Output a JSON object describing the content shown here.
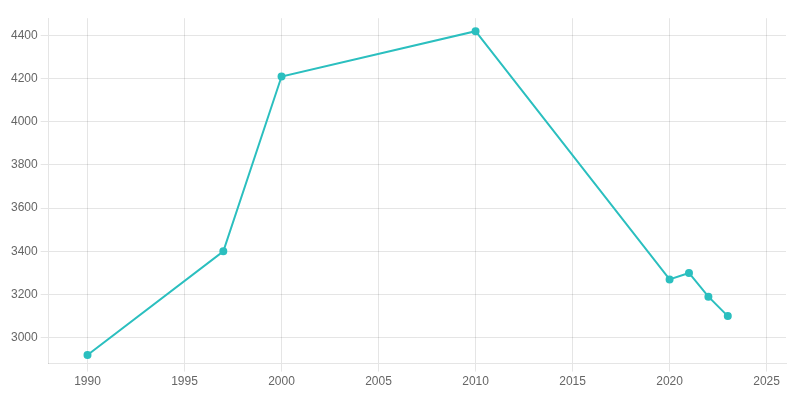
{
  "chart_data": {
    "type": "line",
    "x": [
      1990,
      1997,
      2000,
      2010,
      2020,
      2021,
      2022,
      2023
    ],
    "values": [
      2920,
      3400,
      4210,
      4420,
      3270,
      3300,
      3190,
      3100
    ],
    "color": "#2bbfbf",
    "marker": "circle",
    "xlim": [
      1988,
      2026
    ],
    "xticks": [
      1990,
      1995,
      2000,
      2005,
      2010,
      2015,
      2020,
      2025
    ],
    "ylim": [
      2880,
      4480
    ],
    "yticks": [
      3000,
      3200,
      3400,
      3600,
      3800,
      4000,
      4200,
      4400
    ],
    "grid": true
  }
}
